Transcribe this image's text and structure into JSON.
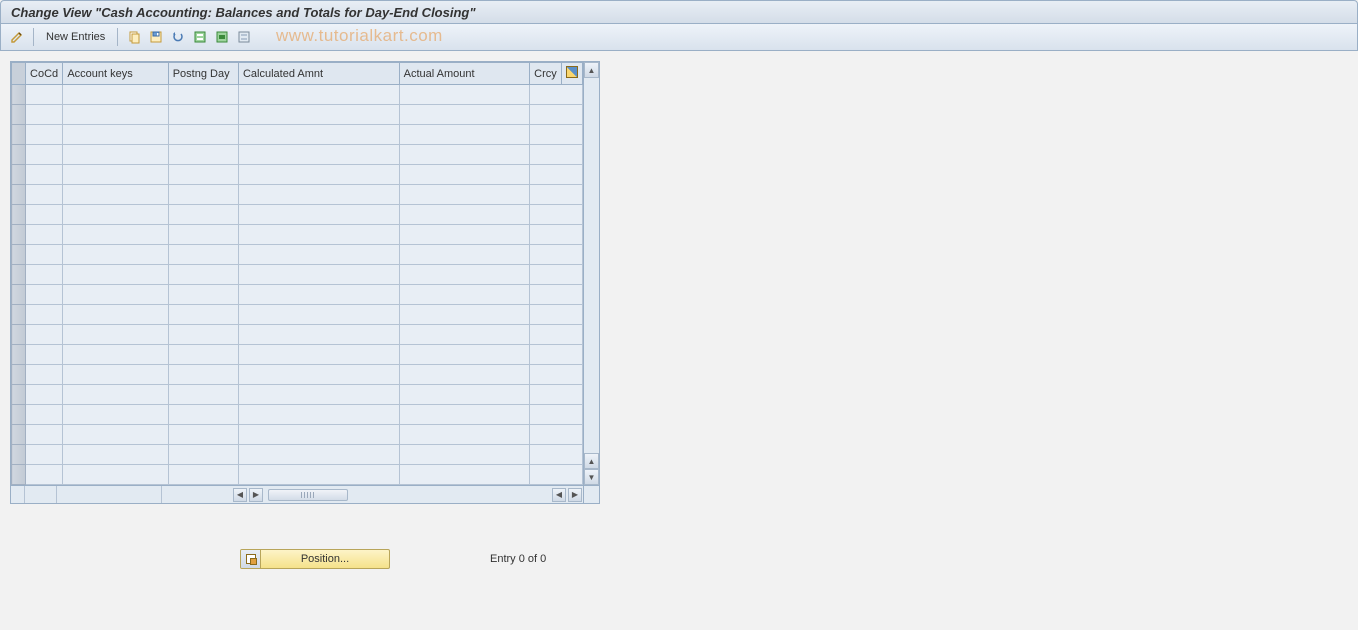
{
  "title": "Change View \"Cash Accounting: Balances and Totals for Day-End Closing\"",
  "toolbar": {
    "new_entries_label": "New Entries"
  },
  "watermark": "www.tutorialkart.com",
  "table": {
    "columns": {
      "cocd": "CoCd",
      "account_keys": "Account keys",
      "postng_day": "Postng Day",
      "calculated_amnt": "Calculated Amnt",
      "actual_amount": "Actual Amount",
      "crcy": "Crcy"
    },
    "empty_row_count": 20,
    "column_widths": {
      "sel": 14,
      "cocd": 32,
      "acct": 105,
      "postday": 70,
      "calcamt": 160,
      "actamt": 130,
      "crcy": 30
    },
    "colors": {
      "header_bg": "#dfe7f0",
      "cell_bg": "#e8eef5",
      "border": "#9aafc6",
      "sel_bg": "#c8d0da"
    }
  },
  "footer": {
    "position_label": "Position...",
    "entry_text": "Entry 0 of 0"
  },
  "icons": {
    "pencil": "pencil-icon",
    "copy": "copy-icon",
    "save_var": "save-variant-icon",
    "undo": "undo-icon",
    "select_all": "select-all-icon",
    "select_block": "select-block-icon",
    "deselect": "deselect-icon",
    "config": "configure-icon"
  }
}
